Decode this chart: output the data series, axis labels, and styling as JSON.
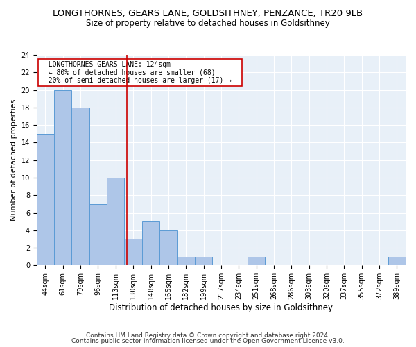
{
  "title": "LONGTHORNES, GEARS LANE, GOLDSITHNEY, PENZANCE, TR20 9LB",
  "subtitle": "Size of property relative to detached houses in Goldsithney",
  "xlabel": "Distribution of detached houses by size in Goldsithney",
  "ylabel": "Number of detached properties",
  "bar_labels": [
    "44sqm",
    "61sqm",
    "79sqm",
    "96sqm",
    "113sqm",
    "130sqm",
    "148sqm",
    "165sqm",
    "182sqm",
    "199sqm",
    "217sqm",
    "234sqm",
    "251sqm",
    "268sqm",
    "286sqm",
    "303sqm",
    "320sqm",
    "337sqm",
    "355sqm",
    "372sqm",
    "389sqm"
  ],
  "bar_values": [
    15,
    20,
    18,
    7,
    10,
    3,
    5,
    4,
    1,
    1,
    0,
    0,
    1,
    0,
    0,
    0,
    0,
    0,
    0,
    0,
    1
  ],
  "bar_color": "#aec6e8",
  "bar_edge_color": "#5b9bd5",
  "vline_x": 4.65,
  "vline_color": "#cc0000",
  "annotation_text": "  LONGTHORNES GEARS LANE: 124sqm  \n  ← 80% of detached houses are smaller (68)  \n  20% of semi-detached houses are larger (17) →  ",
  "annotation_box_color": "white",
  "annotation_box_edge_color": "#cc0000",
  "ylim": [
    0,
    24
  ],
  "yticks": [
    0,
    2,
    4,
    6,
    8,
    10,
    12,
    14,
    16,
    18,
    20,
    22,
    24
  ],
  "background_color": "#e8f0f8",
  "footer_line1": "Contains HM Land Registry data © Crown copyright and database right 2024.",
  "footer_line2": "Contains public sector information licensed under the Open Government Licence v3.0.",
  "title_fontsize": 9.5,
  "subtitle_fontsize": 8.5,
  "xlabel_fontsize": 8.5,
  "ylabel_fontsize": 8,
  "tick_fontsize": 7,
  "annotation_fontsize": 7,
  "footer_fontsize": 6.5
}
